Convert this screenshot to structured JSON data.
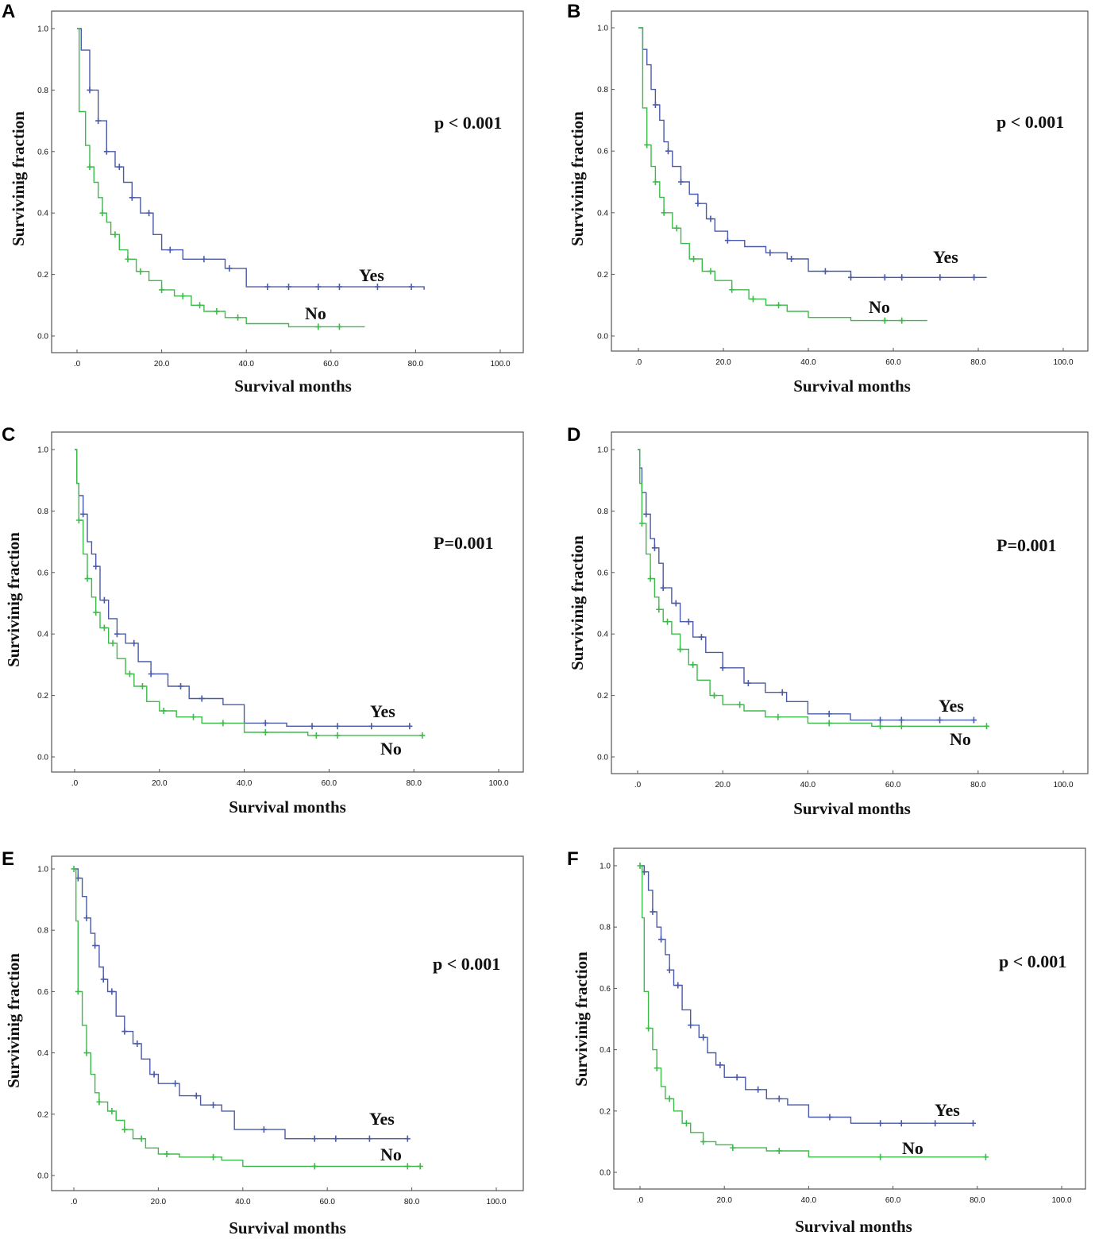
{
  "colors": {
    "yes": "#4a5aa8",
    "no": "#3dbb4a",
    "frame": "#555555",
    "axis": "#555555"
  },
  "chart_data": [
    {
      "panel": "A",
      "type": "line",
      "title": "",
      "xlabel": "Survival months",
      "ylabel": "Survivinig fraction",
      "xlim": [
        0,
        100
      ],
      "ylim": [
        0,
        1
      ],
      "xticks": [
        ".0",
        "20.0",
        "40.0",
        "60.0",
        "80.0",
        "100.0"
      ],
      "yticks": [
        "0.0",
        "0.2",
        "0.4",
        "0.6",
        "0.8",
        "1.0"
      ],
      "annotation": "p < 0.001",
      "series": [
        {
          "name": "Yes",
          "x_end": 82,
          "y_end": 0.15,
          "times": [
            0,
            1,
            3,
            5,
            7,
            9,
            11,
            13,
            15,
            18,
            20,
            25,
            35,
            40,
            82
          ],
          "values": [
            1.0,
            0.93,
            0.8,
            0.7,
            0.6,
            0.55,
            0.5,
            0.45,
            0.4,
            0.33,
            0.28,
            0.25,
            0.22,
            0.16,
            0.15
          ],
          "censor": [
            3,
            5,
            7,
            10,
            13,
            17,
            22,
            30,
            36,
            45,
            50,
            57,
            62,
            71,
            79
          ]
        },
        {
          "name": "No",
          "x_end": 68,
          "y_end": 0.03,
          "times": [
            0,
            0.5,
            2,
            3,
            4,
            5,
            6,
            7,
            8,
            10,
            12,
            14,
            17,
            20,
            23,
            27,
            30,
            35,
            40,
            50,
            68
          ],
          "values": [
            1.0,
            0.73,
            0.62,
            0.55,
            0.5,
            0.45,
            0.4,
            0.37,
            0.33,
            0.28,
            0.25,
            0.21,
            0.18,
            0.15,
            0.13,
            0.1,
            0.08,
            0.06,
            0.04,
            0.03,
            0.03
          ],
          "censor": [
            3,
            6,
            9,
            12,
            15,
            20,
            25,
            29,
            33,
            38,
            57,
            62
          ]
        }
      ]
    },
    {
      "panel": "B",
      "type": "line",
      "title": "",
      "xlabel": "Survival months",
      "ylabel": "Survivinig fraction",
      "xlim": [
        0,
        100
      ],
      "ylim": [
        0,
        1
      ],
      "xticks": [
        ".0",
        "20.0",
        "40.0",
        "60.0",
        "80.0",
        "100.0"
      ],
      "yticks": [
        "0.0",
        "0.2",
        "0.4",
        "0.6",
        "0.8",
        "1.0"
      ],
      "annotation": "p < 0.001",
      "series": [
        {
          "name": "Yes",
          "x_end": 82,
          "y_end": 0.19,
          "times": [
            0,
            1,
            2,
            3,
            4,
            5,
            6,
            7,
            8,
            10,
            12,
            14,
            16,
            18,
            21,
            25,
            30,
            35,
            40,
            50,
            82
          ],
          "values": [
            1.0,
            0.93,
            0.88,
            0.8,
            0.75,
            0.7,
            0.63,
            0.6,
            0.55,
            0.5,
            0.46,
            0.43,
            0.38,
            0.34,
            0.31,
            0.29,
            0.27,
            0.25,
            0.21,
            0.19,
            0.19
          ],
          "censor": [
            4,
            7,
            10,
            14,
            17,
            21,
            31,
            36,
            44,
            50,
            58,
            62,
            71,
            79
          ]
        },
        {
          "name": "No",
          "x_end": 68,
          "y_end": 0.05,
          "times": [
            0,
            1,
            2,
            3,
            4,
            5,
            6,
            8,
            10,
            12,
            15,
            18,
            22,
            26,
            30,
            35,
            40,
            50,
            68
          ],
          "values": [
            1.0,
            0.74,
            0.62,
            0.55,
            0.5,
            0.45,
            0.4,
            0.35,
            0.3,
            0.25,
            0.21,
            0.18,
            0.15,
            0.12,
            0.1,
            0.08,
            0.06,
            0.05,
            0.05
          ],
          "censor": [
            2,
            4,
            6,
            9,
            13,
            17,
            22,
            27,
            33,
            58,
            62
          ]
        }
      ]
    },
    {
      "panel": "C",
      "type": "line",
      "title": "",
      "xlabel": "Survival months",
      "ylabel": "Survivinig fraction",
      "xlim": [
        0,
        100
      ],
      "ylim": [
        0,
        1
      ],
      "xticks": [
        ".0",
        "20.0",
        "40.0",
        "60.0",
        "80.0",
        "100.0"
      ],
      "yticks": [
        "0.0",
        "0.2",
        "0.4",
        "0.6",
        "0.8",
        "1.0"
      ],
      "annotation": "P=0.001",
      "series": [
        {
          "name": "Yes",
          "x_end": 79,
          "y_end": 0.1,
          "times": [
            0,
            0.5,
            1,
            2,
            3,
            4,
            5,
            6,
            8,
            10,
            12,
            15,
            18,
            22,
            27,
            35,
            40,
            50,
            79
          ],
          "values": [
            1.0,
            0.89,
            0.85,
            0.79,
            0.7,
            0.66,
            0.62,
            0.51,
            0.45,
            0.4,
            0.37,
            0.31,
            0.27,
            0.23,
            0.19,
            0.17,
            0.11,
            0.1,
            0.1
          ],
          "censor": [
            2,
            5,
            7,
            10,
            14,
            18,
            25,
            30,
            45,
            56,
            62,
            70,
            79
          ]
        },
        {
          "name": "No",
          "x_end": 82,
          "y_end": 0.07,
          "times": [
            0,
            0.5,
            1,
            2,
            3,
            4,
            5,
            6,
            8,
            10,
            12,
            14,
            17,
            20,
            24,
            30,
            40,
            55,
            82
          ],
          "values": [
            1.0,
            0.89,
            0.77,
            0.66,
            0.58,
            0.52,
            0.47,
            0.42,
            0.37,
            0.32,
            0.27,
            0.23,
            0.18,
            0.15,
            0.13,
            0.11,
            0.08,
            0.07,
            0.07
          ],
          "censor": [
            1,
            3,
            5,
            7,
            9,
            13,
            16,
            21,
            28,
            35,
            45,
            57,
            62,
            82
          ]
        }
      ]
    },
    {
      "panel": "D",
      "type": "line",
      "title": "",
      "xlabel": "Survival months",
      "ylabel": "Survivinig fraction",
      "xlim": [
        0,
        100
      ],
      "ylim": [
        0,
        1
      ],
      "xticks": [
        ".0",
        "20.0",
        "40.0",
        "60.0",
        "80.0",
        "100.0"
      ],
      "yticks": [
        "0.0",
        "0.2",
        "0.4",
        "0.6",
        "0.8",
        "1.0"
      ],
      "annotation": "P=0.001",
      "series": [
        {
          "name": "Yes",
          "x_end": 79,
          "y_end": 0.12,
          "times": [
            0,
            0.5,
            1,
            2,
            3,
            4,
            5,
            6,
            8,
            10,
            13,
            16,
            20,
            25,
            30,
            35,
            40,
            50,
            79
          ],
          "values": [
            1.0,
            0.94,
            0.86,
            0.79,
            0.71,
            0.68,
            0.63,
            0.55,
            0.5,
            0.44,
            0.39,
            0.34,
            0.29,
            0.24,
            0.21,
            0.18,
            0.14,
            0.12,
            0.12
          ],
          "censor": [
            2,
            4,
            6,
            9,
            12,
            15,
            20,
            26,
            34,
            45,
            57,
            62,
            71,
            79
          ]
        },
        {
          "name": "No",
          "x_end": 82,
          "y_end": 0.1,
          "times": [
            0,
            0.5,
            1,
            2,
            3,
            4,
            5,
            6,
            8,
            10,
            12,
            14,
            17,
            20,
            25,
            30,
            40,
            55,
            82
          ],
          "values": [
            1.0,
            0.89,
            0.76,
            0.66,
            0.58,
            0.52,
            0.48,
            0.44,
            0.4,
            0.35,
            0.3,
            0.25,
            0.2,
            0.17,
            0.15,
            0.13,
            0.11,
            0.1,
            0.1
          ],
          "censor": [
            1,
            3,
            5,
            7,
            10,
            13,
            18,
            24,
            33,
            45,
            57,
            62,
            82
          ]
        }
      ]
    },
    {
      "panel": "E",
      "type": "line",
      "title": "",
      "xlabel": "Survival months",
      "ylabel": "Survivinig fraction",
      "xlim": [
        0,
        100
      ],
      "ylim": [
        0,
        1
      ],
      "xticks": [
        ".0",
        "20.0",
        "40.0",
        "60.0",
        "80.0",
        "100.0"
      ],
      "yticks": [
        "0.0",
        "0.2",
        "0.4",
        "0.6",
        "0.8",
        "1.0"
      ],
      "annotation": "p < 0.001",
      "series": [
        {
          "name": "Yes",
          "x_end": 79,
          "y_end": 0.12,
          "times": [
            0,
            1,
            2,
            3,
            4,
            5,
            6,
            7,
            8,
            10,
            12,
            14,
            16,
            18,
            20,
            25,
            30,
            35,
            38,
            50,
            79
          ],
          "values": [
            1.0,
            0.97,
            0.91,
            0.84,
            0.79,
            0.75,
            0.68,
            0.64,
            0.6,
            0.52,
            0.47,
            0.43,
            0.38,
            0.33,
            0.3,
            0.26,
            0.23,
            0.21,
            0.15,
            0.12,
            0.12
          ],
          "censor": [
            1,
            3,
            5,
            7,
            9,
            12,
            15,
            19,
            24,
            29,
            33,
            45,
            57,
            62,
            70,
            79
          ]
        },
        {
          "name": "No",
          "x_end": 82,
          "y_end": 0.03,
          "times": [
            0,
            0.5,
            1,
            2,
            3,
            4,
            5,
            6,
            8,
            10,
            12,
            14,
            17,
            20,
            25,
            35,
            40,
            82
          ],
          "values": [
            1.0,
            0.83,
            0.6,
            0.49,
            0.4,
            0.33,
            0.27,
            0.24,
            0.21,
            0.18,
            0.15,
            0.12,
            0.09,
            0.07,
            0.06,
            0.05,
            0.03,
            0.03
          ],
          "censor": [
            0,
            1,
            3,
            6,
            9,
            12,
            16,
            22,
            33,
            57,
            79,
            82
          ]
        }
      ]
    },
    {
      "panel": "F",
      "type": "line",
      "title": "",
      "xlabel": "Survival months",
      "ylabel": "Survivinig fraction",
      "xlim": [
        0,
        100
      ],
      "ylim": [
        0,
        1
      ],
      "xticks": [
        ".0",
        "20.0",
        "40.0",
        "60.0",
        "80.0",
        "100.0"
      ],
      "yticks": [
        "0.0",
        "0.2",
        "0.4",
        "0.6",
        "0.8",
        "1.0"
      ],
      "annotation": "p < 0.001",
      "series": [
        {
          "name": "Yes",
          "x_end": 79,
          "y_end": 0.16,
          "times": [
            0,
            1,
            2,
            3,
            4,
            5,
            6,
            7,
            8,
            10,
            12,
            14,
            16,
            18,
            20,
            25,
            30,
            35,
            40,
            50,
            79
          ],
          "values": [
            1.0,
            0.98,
            0.92,
            0.85,
            0.8,
            0.76,
            0.71,
            0.66,
            0.61,
            0.53,
            0.48,
            0.44,
            0.39,
            0.35,
            0.31,
            0.27,
            0.24,
            0.22,
            0.18,
            0.16,
            0.16
          ],
          "censor": [
            1,
            3,
            5,
            7,
            9,
            12,
            15,
            19,
            23,
            28,
            33,
            45,
            57,
            62,
            70,
            79
          ]
        },
        {
          "name": "No",
          "x_end": 82,
          "y_end": 0.05,
          "times": [
            0,
            0.5,
            1,
            2,
            3,
            4,
            5,
            6,
            8,
            10,
            12,
            15,
            18,
            22,
            30,
            40,
            82
          ],
          "values": [
            1.0,
            0.83,
            0.59,
            0.47,
            0.4,
            0.34,
            0.28,
            0.24,
            0.2,
            0.16,
            0.13,
            0.1,
            0.09,
            0.08,
            0.07,
            0.05,
            0.05
          ],
          "censor": [
            0,
            2,
            4,
            7,
            11,
            15,
            22,
            33,
            57,
            82
          ]
        }
      ]
    }
  ]
}
